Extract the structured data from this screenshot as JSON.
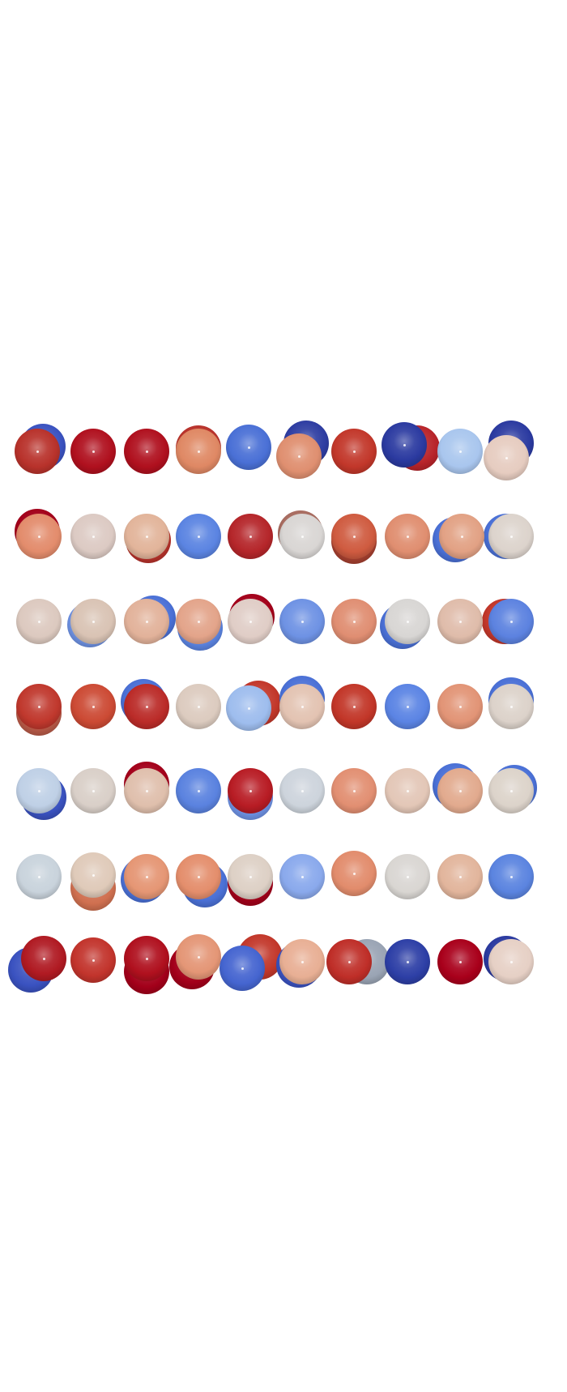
{
  "render": {
    "background": "#ffffff",
    "colormap": "coolwarm",
    "colormap_stops": [
      "#2f3fa8",
      "#5a7de0",
      "#9fbcec",
      "#dcdcdc",
      "#e9c3ac",
      "#e58b68",
      "#c2372a",
      "#a3001a"
    ],
    "grid": {
      "rows": 7,
      "columns": 10
    }
  },
  "sphere_grid": {
    "front_colors": [
      [
        "#b8322b",
        "#b0101e",
        "#b0101e",
        "#df8864",
        "#4a70d6",
        "#df8f70",
        "#c2372a",
        "#2b3aa0",
        "#a9c6ee",
        "#e6ccc0"
      ],
      [
        "#e38c6c",
        "#dccac3",
        "#e2b49a",
        "#5b84e2",
        "#b5262a",
        "#d9d6d4",
        "#cf5b40",
        "#e08e70",
        "#e2a184",
        "#dcd3cc"
      ],
      [
        "#dcc9bf",
        "#d9c3b4",
        "#e2b29a",
        "#e3a48a",
        "#e0cdc6",
        "#6e92e4",
        "#e08e72",
        "#d8d6d4",
        "#dfbcaa",
        "#5c82e0"
      ],
      [
        "#c0382d",
        "#cc4a34",
        "#bb2b28",
        "#dccbbf",
        "#9ebdee",
        "#e3c3b2",
        "#c23628",
        "#5b84e4",
        "#e29476",
        "#dcd2ca"
      ],
      [
        "#bfd0e6",
        "#d9cfc8",
        "#dfbfac",
        "#5a82df",
        "#b81c24",
        "#cdd4dc",
        "#e28f72",
        "#e3c7b7",
        "#e2aa8e",
        "#dcd3ca"
      ],
      [
        "#c9d3dc",
        "#dfcab9",
        "#e59674",
        "#e48e6c",
        "#ddd0c5",
        "#8aa9ec",
        "#e28c6c",
        "#d9d6d2",
        "#e2b59c",
        "#5b84e0"
      ],
      [
        "#b01a22",
        "#c2342c",
        "#b0101e",
        "#e49676",
        "#4565d0",
        "#e8af94",
        "#bf2e28",
        "#2d3fa6",
        "#a9001b",
        "#e6d0c5"
      ]
    ],
    "back_colors": [
      [
        "#3a52c0",
        null,
        null,
        "#b8322b",
        null,
        "#2e3da2",
        null,
        "#b8242a",
        null,
        "#2b3aa0"
      ],
      [
        "#a3001a",
        null,
        "#b8322b",
        null,
        null,
        "#a86c60",
        "#a64030",
        null,
        "#4a70d6",
        "#4a70d6"
      ],
      [
        null,
        "#6e92e4",
        "#4a70d6",
        "#5b84e2",
        "#a3001a",
        null,
        null,
        "#4a70d6",
        null,
        "#c2372a"
      ],
      [
        "#b85a48",
        null,
        "#4a70d6",
        null,
        "#c2372a",
        "#4a70d6",
        null,
        null,
        null,
        "#4a70d6"
      ],
      [
        "#3a52c0",
        null,
        "#a3001a",
        null,
        "#6e92e4",
        null,
        null,
        null,
        "#4a70d6",
        "#4a70d6"
      ],
      [
        null,
        "#d07050",
        "#4a70d6",
        "#4a70d6",
        "#a3001a",
        null,
        null,
        null,
        null,
        null
      ],
      [
        "#3a52c0",
        null,
        "#a3001a",
        "#a3001a",
        "#c2372a",
        "#3a52c0",
        "#9aa4b4",
        null,
        null,
        "#2b3aa0"
      ]
    ]
  }
}
